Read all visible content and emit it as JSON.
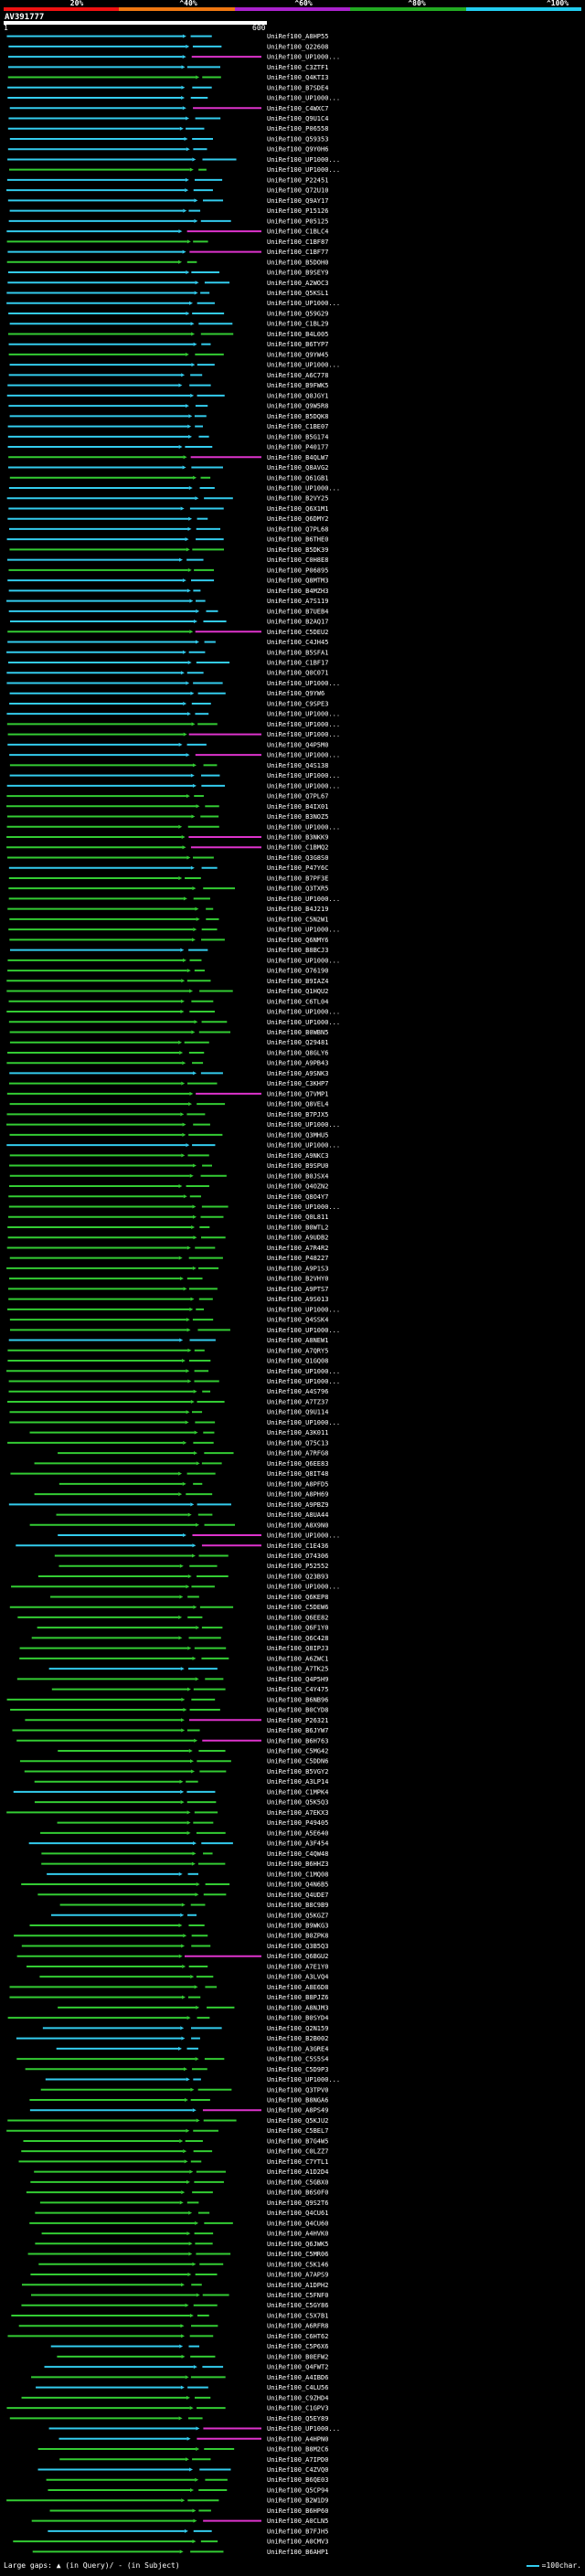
{
  "header": {
    "scale_labels": [
      "20%",
      "^40%",
      "^60%",
      "^80%",
      "^100%"
    ],
    "scale_colors": [
      "#ee1111",
      "#ee7711",
      "#aa22cc",
      "#22aa22",
      "#22ccee"
    ],
    "query_name": "AV391777",
    "axis_start": "1",
    "axis_end": "600"
  },
  "colors": {
    "background": "#000000",
    "cyan": "#33ccee",
    "green": "#33cc33",
    "magenta": "#dd33cc",
    "white": "#ffffff"
  },
  "hits": [
    "UniRef100_A8HP55",
    "UniRef100_Q22608",
    "UniRef100_UP1000...",
    "UniRef100_C3ZTF1",
    "UniRef100_Q4KTI3",
    "UniRef100_B7SDE4",
    "UniRef100_UP1000...",
    "UniRef100_C4WXC7",
    "UniRef100_Q9U1C4",
    "UniRef100_P06558",
    "UniRef100_Q59353",
    "UniRef100_Q9Y0H6",
    "UniRef100_UP1000...",
    "UniRef100_UP1000...",
    "UniRef100_P22451",
    "UniRef100_Q72U10",
    "UniRef100_Q9AY17",
    "UniRef100_P15126",
    "UniRef100_P05125",
    "UniRef100_C1BLC4",
    "UniRef100_C1BF87",
    "UniRef100_C1BF77",
    "UniRef100_B5DOH0",
    "UniRef100_B9SEY9",
    "UniRef100_A2WOC3",
    "UniRef100_Q5KSL1",
    "UniRef100_UP1000...",
    "UniRef100_Q59G29",
    "UniRef100_C1BL29",
    "UniRef100_B4L005",
    "UniRef100_B6TYP7",
    "UniRef100_Q9YW45",
    "UniRef100_UP1000...",
    "UniRef100_A6C778",
    "UniRef100_B9FWK5",
    "UniRef100_Q0JGY1",
    "UniRef100_Q9W5R8",
    "UniRef100_B5DQK8",
    "UniRef100_C1BE07",
    "UniRef100_B5G174",
    "UniRef100_P40177",
    "UniRef100_B4QLW7",
    "UniRef100_Q8AVG2",
    "UniRef100_Q61GB1",
    "UniRef100_UP1000...",
    "UniRef100_B2VY25",
    "UniRef100_Q6X1M1",
    "UniRef100_Q6DMY2",
    "UniRef100_Q7PL68",
    "UniRef100_B6THE0",
    "UniRef100_B5DK39",
    "UniRef100_C0H8E8",
    "UniRef100_P06895",
    "UniRef100_Q8MTM3",
    "UniRef100_B4MZH3",
    "UniRef100_A7S119",
    "UniRef100_B7UEB4",
    "UniRef100_B2AQ17",
    "UniRef100_C5DEU2",
    "UniRef100_C4JH45",
    "UniRef100_B5SFA1",
    "UniRef100_C1BF17",
    "UniRef100_Q0C071",
    "UniRef100_UP1000...",
    "UniRef100_Q9YW6",
    "UniRef100_C9SPE3",
    "UniRef100_UP1000...",
    "UniRef100_UP1000...",
    "UniRef100_UP1000...",
    "UniRef100_Q4P5M0",
    "UniRef100_UP1000...",
    "UniRef100_Q4S138",
    "UniRef100_UP1000...",
    "UniRef100_UP1000...",
    "UniRef100_Q7PL67",
    "UniRef100_B4IX01",
    "UniRef100_B3NOZ5",
    "UniRef100_UP1000...",
    "UniRef100_B3NKK9",
    "UniRef100_C1BMQ2",
    "UniRef100_Q3G8S0",
    "UniRef100_P47Y6C",
    "UniRef100_B7PF3E",
    "UniRef100_Q3TXR5",
    "UniRef100_UP1000...",
    "UniRef100_B4J219",
    "UniRef100_C5N2W1",
    "UniRef100_UP1000...",
    "UniRef100_Q6NMY6",
    "UniRef100_B8BCJ3",
    "UniRef100_UP1000...",
    "UniRef100_O76190",
    "UniRef100_B9IAZ4",
    "UniRef100_Q1HQU2",
    "UniRef100_C6TL04",
    "UniRef100_UP1000...",
    "UniRef100_UP1000...",
    "UniRef100_B0WBN5",
    "UniRef100_Q29481",
    "UniRef100_Q8GLY6",
    "UniRef100_A9PB43",
    "UniRef100_A9SNK3",
    "UniRef100_C3KHP7",
    "UniRef100_Q7VMP1",
    "UniRef100_Q8VEL4",
    "UniRef100_B7PJX5",
    "UniRef100_UP1000...",
    "UniRef100_Q3MHU5",
    "UniRef100_UP1000...",
    "UniRef100_A9NKC3",
    "UniRef100_B9SPU0",
    "UniRef100_B0JSX4",
    "UniRef100_Q4OZN2",
    "UniRef100_Q8O4Y7",
    "UniRef100_UP1000...",
    "UniRef100_Q0L811",
    "UniRef100_B0WTL2",
    "UniRef100_A9UDB2",
    "UniRef100_A7R4R2",
    "UniRef100_P48227",
    "UniRef100_A9P1S3",
    "UniRef100_B2VHY0",
    "UniRef100_A9PTS7",
    "UniRef100_A9S013",
    "UniRef100_UP1000...",
    "UniRef100_Q4SSK4",
    "UniRef100_UP1000...",
    "UniRef100_A8NEW1",
    "UniRef100_A7QRY5",
    "UniRef100_Q1GQ08",
    "UniRef100_UP1000...",
    "UniRef100_UP1000...",
    "UniRef100_A4S796",
    "UniRef100_A7TZ37",
    "UniRef100_Q9U114",
    "UniRef100_UP1000...",
    "UniRef100_A3K011",
    "UniRef100_Q75C13",
    "UniRef100_A7RFG8",
    "UniRef100_Q6EE83",
    "UniRef100_Q8IT48",
    "UniRef100_A8PFD5",
    "UniRef100_A8PH69",
    "UniRef100_A9PBZ9",
    "UniRef100_A8UA44",
    "UniRef100_A8X9N0",
    "UniRef100_UP1000...",
    "UniRef100_C1E436",
    "UniRef100_O74306",
    "UniRef100_P52552",
    "UniRef100_Q23B93",
    "UniRef100_UP1000...",
    "UniRef100_Q6KEP8",
    "UniRef100_C5DEW6",
    "UniRef100_Q6EE82",
    "UniRef100_Q6F1Y0",
    "UniRef100_Q6C428",
    "UniRef100_Q8IPJ3",
    "UniRef100_A6ZWC1",
    "UniRef100_A7TK25",
    "UniRef100_Q4P5H9",
    "UniRef100_C4Y475",
    "UniRef100_B6NB96",
    "UniRef100_B0CYD8",
    "UniRef100_P26321",
    "UniRef100_B6JYW7",
    "UniRef100_B6H763",
    "UniRef100_C5MG42",
    "UniRef100_C5DDN6",
    "UniRef100_B5VGY2",
    "UniRef100_A3LP14",
    "UniRef100_C1MPK4",
    "UniRef100_Q5K5Q3",
    "UniRef100_A7EKX3",
    "UniRef100_P49405",
    "UniRef100_A5E640",
    "UniRef100_A3F454",
    "UniRef100_C4QW48",
    "UniRef100_B6HHZ3",
    "UniRef100_C1MQ08",
    "UniRef100_Q4N6B5",
    "UniRef100_Q4UDE7",
    "UniRef100_B8C9B9",
    "UniRef100_Q5KGZ7",
    "UniRef100_B9WKG3",
    "UniRef100_B0ZPK8",
    "UniRef100_Q3B5Q3",
    "UniRef100_Q6BGU2",
    "UniRef100_A7E1Y0",
    "UniRef100_A3LVQ4",
    "UniRef100_A8E6D8",
    "UniRef100_B8PJZ6",
    "UniRef100_A8NJM3",
    "UniRef100_B0SYD4",
    "UniRef100_Q2N159",
    "UniRef100_B2B002",
    "UniRef100_A3GRE4",
    "UniRef100_C5S5S4",
    "UniRef100_C5D9P3",
    "UniRef100_UP1000...",
    "UniRef100_Q3TPV0",
    "UniRef100_B8NGA6",
    "UniRef100_A8PS49",
    "UniRef100_Q5KJU2",
    "UniRef100_C5BEL7",
    "UniRef100_B7G4W5",
    "UniRef100_C0LZZ7",
    "UniRef100_C7YTL1",
    "UniRef100_A1D2D4",
    "UniRef100_C5GBX0",
    "UniRef100_B6S0F0",
    "UniRef100_Q9S2T6",
    "UniRef100_Q4CU61",
    "UniRef100_Q4CU60",
    "UniRef100_A4HVK0",
    "UniRef100_Q6JWK5",
    "UniRef100_C5MR06",
    "UniRef100_C5K146",
    "UniRef100_A7APS9",
    "UniRef100_A1DPH2",
    "UniRef100_C5FNF0",
    "UniRef100_C5GY86",
    "UniRef100_C5X7B1",
    "UniRef100_A6RFR8",
    "UniRef100_C6HT62",
    "UniRef100_C5P6X6",
    "UniRef100_B0EFW2",
    "UniRef100_Q4FWT2",
    "UniRef100_A4IBD6",
    "UniRef100_C4LU56",
    "UniRef100_C9ZHD4",
    "UniRef100_C1GPV3",
    "UniRef100_Q5EY89",
    "UniRef100_UP1000...",
    "UniRef100_A4HPN0",
    "UniRef100_B8M2C6",
    "UniRef100_A7IPD0",
    "UniRef100_C4ZVQ0",
    "UniRef100_B6QE03",
    "UniRef100_Q5CP94",
    "UniRef100_B2W1D9",
    "UniRef100_B6HP60",
    "UniRef100_A0CLN5",
    "UniRef100_B7FJH5",
    "UniRef100_A0CMV3",
    "UniRef100_B6AHP1"
  ],
  "footer": {
    "gap_legend": "Large gaps: ▲ (in Query)/ - (in Subject)",
    "scale_legend": "=100char."
  }
}
